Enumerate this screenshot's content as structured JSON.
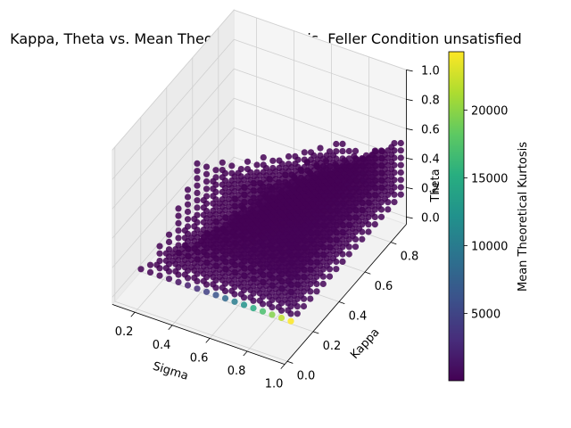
{
  "chart_data": {
    "type": "scatter",
    "projection": "3d",
    "title": "Kappa, Theta vs. Mean Theoretical Kurtosis. Feller Condition unsatisfied",
    "xlabel": "Sigma",
    "ylabel": "Kappa",
    "zlabel": "Theta",
    "x_ticks": [
      "0.2",
      "0.4",
      "0.6",
      "0.8",
      "1.0"
    ],
    "y_ticks": [
      "0.0",
      "0.2",
      "0.4",
      "0.6",
      "0.8"
    ],
    "z_ticks": [
      "0.0",
      "0.2",
      "0.4",
      "0.6",
      "0.8",
      "1.0"
    ],
    "xlim": [
      0.08,
      1.0
    ],
    "ylim": [
      -0.02,
      0.92
    ],
    "zlim": [
      -0.05,
      1.0
    ],
    "grid": true,
    "grid_values": [
      0.1,
      0.15,
      0.2,
      0.25,
      0.3,
      0.35,
      0.4,
      0.45,
      0.5,
      0.55,
      0.6,
      0.65,
      0.7,
      0.75,
      0.8,
      0.85,
      0.9,
      0.95
    ],
    "description_of_points": "Grid of (sigma, kappa, theta) combinations for which the Feller condition 2*kappa*theta < sigma^2 is unsatisfied; colour = mean theoretical kurtosis",
    "colormap": "viridis",
    "colorbar": {
      "label": "Mean Theoretical Kurtosis",
      "ticks": [
        "5000",
        "10000",
        "15000",
        "20000"
      ],
      "tick_values": [
        5000,
        10000,
        15000,
        20000
      ],
      "range": [
        30,
        24300
      ]
    },
    "highlighted_points": {
      "kappa": 0.1,
      "theta": 0.1,
      "sigma": [
        0.3,
        0.35,
        0.4,
        0.45,
        0.5,
        0.55,
        0.6,
        0.65,
        0.7,
        0.75,
        0.8,
        0.85,
        0.9,
        0.95
      ],
      "kurtosis": [
        620,
        1200,
        2000,
        3100,
        4600,
        6300,
        8100,
        10200,
        12500,
        14800,
        17200,
        19700,
        22000,
        24300
      ]
    },
    "colors": {
      "low": "#440154",
      "high": "#fde725",
      "pane": "#f2f2f2"
    }
  }
}
